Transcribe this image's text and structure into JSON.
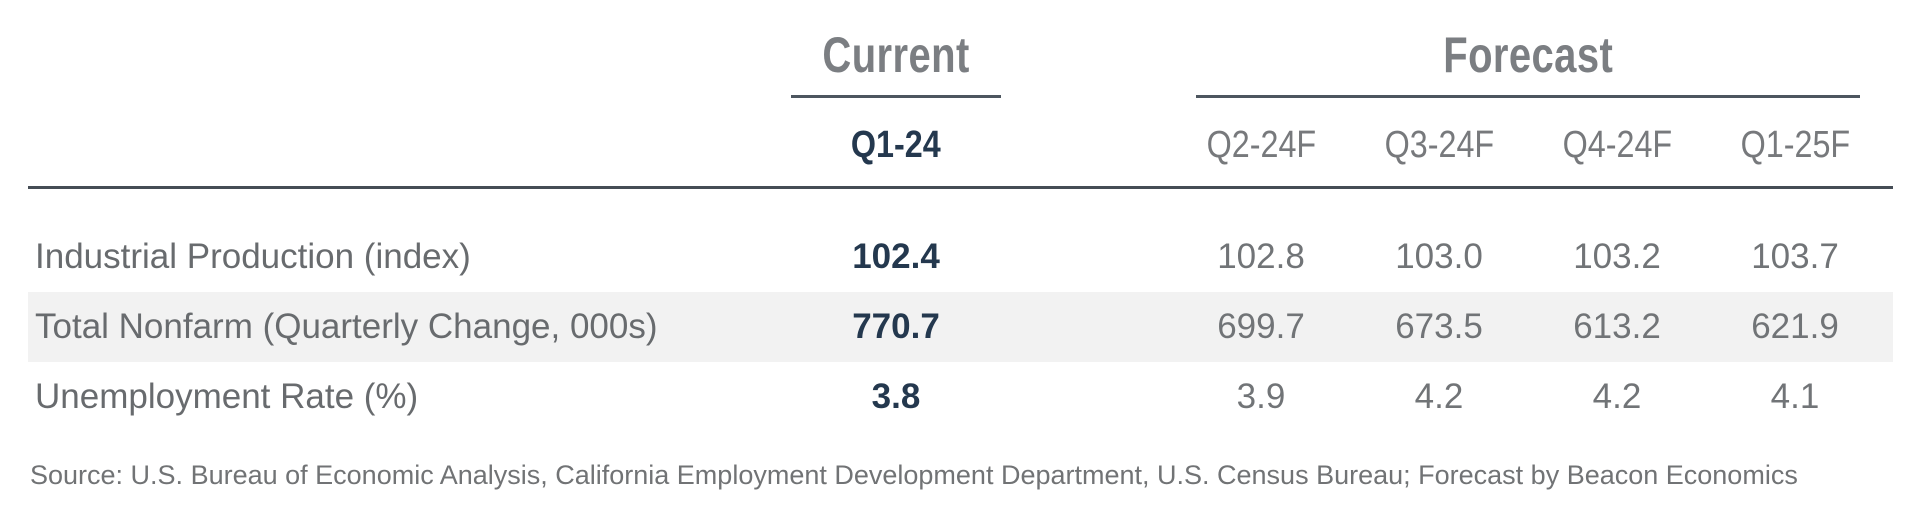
{
  "chart_data": {
    "type": "table",
    "title": "",
    "column_groups": [
      {
        "label": "Current",
        "span": 1
      },
      {
        "label": "Forecast",
        "span": 4
      }
    ],
    "columns": [
      "Q1-24",
      "Q2-24F",
      "Q3-24F",
      "Q4-24F",
      "Q1-25F"
    ],
    "rows": [
      {
        "label": "Industrial Production (index)",
        "current": "102.4",
        "forecast": [
          "102.8",
          "103.0",
          "103.2",
          "103.7"
        ]
      },
      {
        "label": "Total Nonfarm (Quarterly Change, 000s)",
        "current": "770.7",
        "forecast": [
          "699.7",
          "673.5",
          "613.2",
          "621.9"
        ]
      },
      {
        "label": "Unemployment Rate (%)",
        "current": "3.8",
        "forecast": [
          "3.9",
          "4.2",
          "4.2",
          "4.1"
        ]
      }
    ],
    "source": "Source: U.S. Bureau of Economic Analysis, California Employment Development Department, U.S. Census Bureau; Forecast by Beacon Economics",
    "layout_hints": {
      "highlighted_row_index": 1,
      "current_column_style": "bold navy",
      "grid": "off"
    }
  },
  "colors": {
    "current_value_navy": "#24384e",
    "header_gray": "#7b7e82",
    "body_gray": "#686b6e",
    "rule_dark": "#454d55",
    "shaded_row_bg": "#f2f2f2",
    "background": "#ffffff"
  }
}
